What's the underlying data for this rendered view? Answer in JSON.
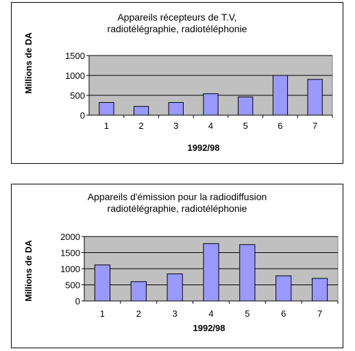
{
  "chart_data": [
    {
      "type": "bar",
      "title": "Appareils récepteurs de T.V,",
      "subtitle": "radiotélégraphie, radiotéléphonie",
      "xlabel": "1992/98",
      "ylabel": "Millions de DA",
      "categories": [
        "1",
        "2",
        "3",
        "4",
        "5",
        "6",
        "7"
      ],
      "values": [
        320,
        220,
        320,
        540,
        460,
        1000,
        900
      ],
      "ylim": [
        0,
        1500
      ],
      "yticks": [
        0,
        500,
        1000,
        1500
      ],
      "grid": true,
      "legend": "none",
      "bar_color": "#9999ff",
      "plot_bg": "#c0c0c0"
    },
    {
      "type": "bar",
      "title": "Appareils d'émission pour la radiodiffusion",
      "subtitle": "radiotélégraphie, radiotéléphonie",
      "xlabel": "1992/98",
      "ylabel": "Millions de DA",
      "categories": [
        "1",
        "2",
        "3",
        "4",
        "5",
        "6",
        "7"
      ],
      "values": [
        1120,
        600,
        840,
        1780,
        1750,
        780,
        700
      ],
      "ylim": [
        0,
        2000
      ],
      "yticks": [
        0,
        500,
        1000,
        1500,
        2000
      ],
      "grid": true,
      "legend": "none",
      "bar_color": "#9999ff",
      "plot_bg": "#c0c0c0"
    }
  ]
}
